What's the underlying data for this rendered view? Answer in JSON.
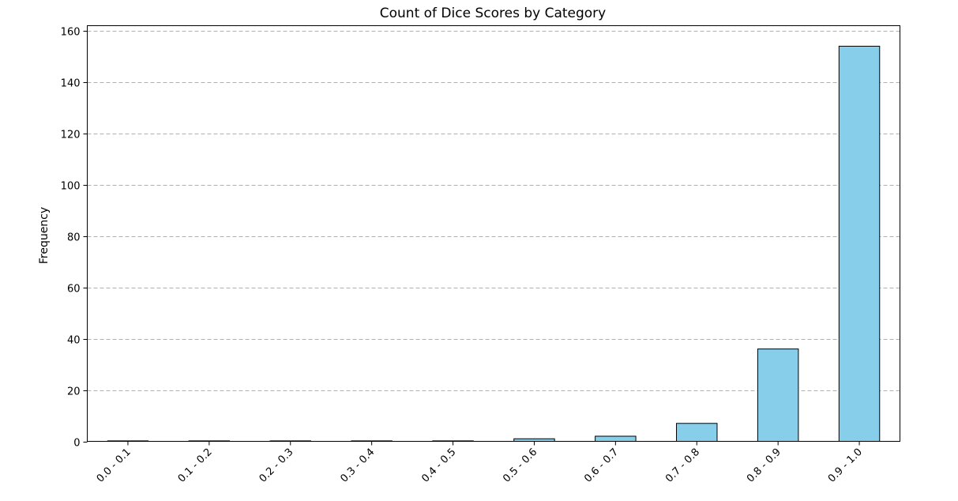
{
  "chart_data": {
    "type": "bar",
    "title": "Count of Dice Scores by Category",
    "xlabel": "",
    "ylabel": "Frequency",
    "categories": [
      "0.0 - 0.1",
      "0.1 - 0.2",
      "0.2 - 0.3",
      "0.3 - 0.4",
      "0.4 - 0.5",
      "0.5 - 0.6",
      "0.6 - 0.7",
      "0.7 - 0.8",
      "0.8 - 0.9",
      "0.9 - 1.0"
    ],
    "values": [
      0,
      0,
      0,
      0,
      0,
      1,
      2,
      7,
      36,
      154
    ],
    "ylim": [
      0,
      162
    ],
    "yticks": [
      0,
      20,
      40,
      60,
      80,
      100,
      120,
      140,
      160
    ],
    "grid": "y-dashed",
    "legend": "none",
    "colors": {
      "bar_fill": "#87ceeb",
      "bar_edge": "#000000",
      "grid": "#b0b0b0"
    }
  }
}
